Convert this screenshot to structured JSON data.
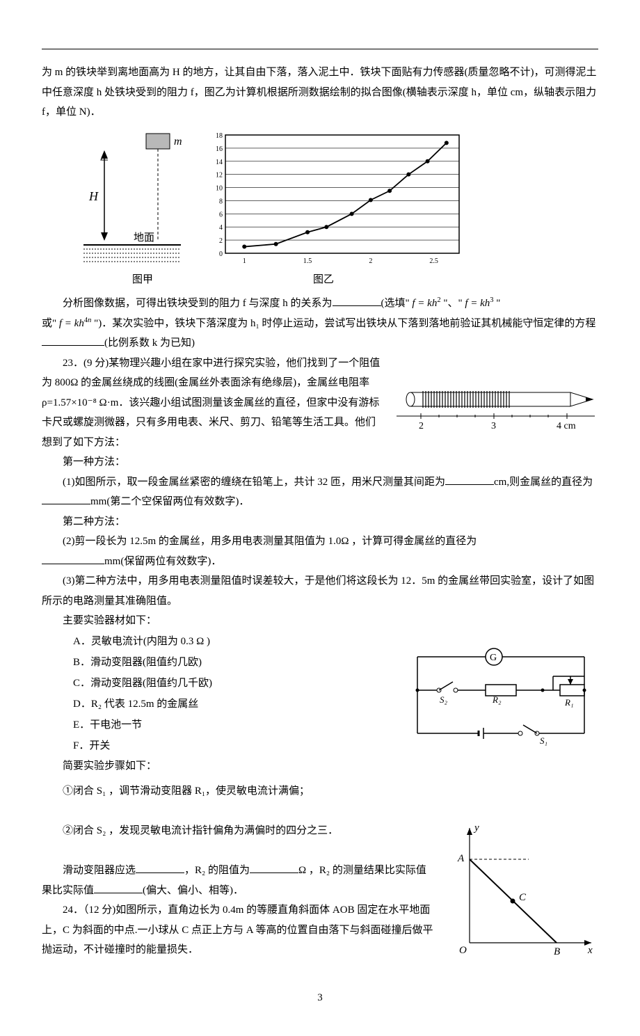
{
  "intro": {
    "line1": "为 m 的铁块举到离地面高为 H 的地方，让其自由下落，落入泥土中．铁块下面贴有力传感器(质量忽略不计)，可测得泥土中任意深度 h 处铁块受到的阻力 f，图乙为计算机根据所测数据绘制的拟合图像(横轴表示深度 h，单位 cm，纵轴表示阻力 f，单位 N)．"
  },
  "fig_jia": {
    "m_label": "m",
    "H_label": "H",
    "ground_label": "地面",
    "caption": "图甲",
    "block_fill": "#b8b8b8",
    "line_color": "#000000"
  },
  "fig_yi": {
    "caption": "图乙",
    "xticks": [
      1,
      1.5,
      2,
      2.5
    ],
    "yticks": [
      0,
      2,
      4,
      6,
      8,
      10,
      12,
      14,
      16,
      18
    ],
    "points": [
      [
        1.0,
        1.0
      ],
      [
        1.25,
        1.4
      ],
      [
        1.5,
        3.2
      ],
      [
        1.65,
        4.0
      ],
      [
        1.85,
        6.0
      ],
      [
        2.0,
        8.1
      ],
      [
        2.15,
        9.5
      ],
      [
        2.3,
        12.0
      ],
      [
        2.45,
        14.0
      ],
      [
        2.6,
        16.8
      ]
    ],
    "bg": "#ffffff",
    "axis_color": "#000000",
    "grid_color": "#000000",
    "curve_color": "#000000",
    "marker_fill": "#000000",
    "tick_fontsize": 10,
    "xlim": [
      0.85,
      2.7
    ],
    "ylim": [
      0,
      18
    ]
  },
  "q22": {
    "text_a": "分析图像数据，可得出铁块受到的阻力 f 与深度 h 的关系为",
    "opt1": "f = kh²",
    "opt2": "f = kh³",
    "opt3": "f = kh⁴ⁿ",
    "text_b": "(选填\"",
    "text_c": "\"、\"",
    "text_d": "\"",
    "text_e": "或\"",
    "text_f": "\")．某次实验中，铁块下落深度为 h₁ 时停止运动，尝试写出铁块从下落到落地前验证其机械能守恒定律的方程",
    "text_g": "(比例系数 k 为已知)"
  },
  "q23": {
    "head": "23．(9 分)某物理兴趣小组在家中进行探究实验，他们找到了一个阻值为 800Ω 的金属丝绕成的线圈(金属丝外表面涂有绝缘层)，金属丝电阻率 ρ=1.57×10⁻⁸ Ω·m．该兴趣小组试图测量该金属丝的直径，但家中没有游标卡尺或螺旋测微器，只有多用电表、米尺、剪刀、铅笔等生活工具。他们想到了如下方法：",
    "m1": "第一种方法：",
    "p1a": "(1)如图所示，取一段金属丝紧密的缠绕在铅笔上，共计 32 匝，用米尺测量其间距为",
    "p1b": "cm,则金属丝的直径为",
    "p1c": "mm(第二个空保留两位有效数字)．",
    "m2": "第二种方法：",
    "p2a": "(2)剪一段长为 12.5m 的金属丝，用多用电表测量其阻值为 1.0Ω ，计算可得金属丝的直径为",
    "p2b": "mm(保留两位有效数字)．",
    "p3": "(3)第二种方法中，用多用电表测量阻值时误差较大，于是他们将这段长为 12．5m 的金属丝带回实验室，设计了如图所示的电路测量其准确阻值。",
    "apparatus_head": "主要实验器材如下：",
    "opts": {
      "A": "A．灵敏电流计(内阻为 0.3 Ω )",
      "B": "B．滑动变阻器(阻值约几欧)",
      "C": "C．滑动变阻器(阻值约几千欧)",
      "D": "D．R₂ 代表 12.5m 的金属丝",
      "E": "E．干电池一节",
      "F": "F．开关"
    },
    "steps_head": "简要实验步骤如下：",
    "s1": "①闭合 S₁ ，调节滑动变阻器 R₁，使灵敏电流计满偏；",
    "s2": "②闭合 S₂ ，发现灵敏电流计指针偏角为满偏时的四分之三．",
    "res_a": "滑动变阻器应选",
    "res_b": "，R₂ 的阻值为",
    "res_c": "Ω ，R₂ 的测量结果比实际值",
    "res_d": "(偏大、偏小、相等)．"
  },
  "pencil_fig": {
    "ticks": [
      "2",
      "3",
      "4 cm"
    ],
    "tick_fontsize": 12,
    "pencil_body": "#ffffff",
    "pencil_tip": "#000000",
    "wire_color": "#000000",
    "line_color": "#000000"
  },
  "circuit_fig": {
    "G_label": "G",
    "R1_label": "R₁",
    "R2_label": "R₂",
    "S1_label": "S₁",
    "S2_label": "S₂",
    "line_color": "#000000",
    "bg": "#ffffff"
  },
  "q24": {
    "text": "24．（12 分)如图所示，直角边长为 0.4m 的等腰直角斜面体 AOB 固定在水平地面上，C 为斜面的中点.一小球从 C 点正上方与 A 等高的位置自由落下与斜面碰撞后做平抛运动，不计碰撞时的能量损失．"
  },
  "triangle_fig": {
    "A": "A",
    "B": "B",
    "C": "C",
    "O": "O",
    "y_label": "y",
    "x_label": "x",
    "line_color": "#000000"
  },
  "pagenum": "3"
}
